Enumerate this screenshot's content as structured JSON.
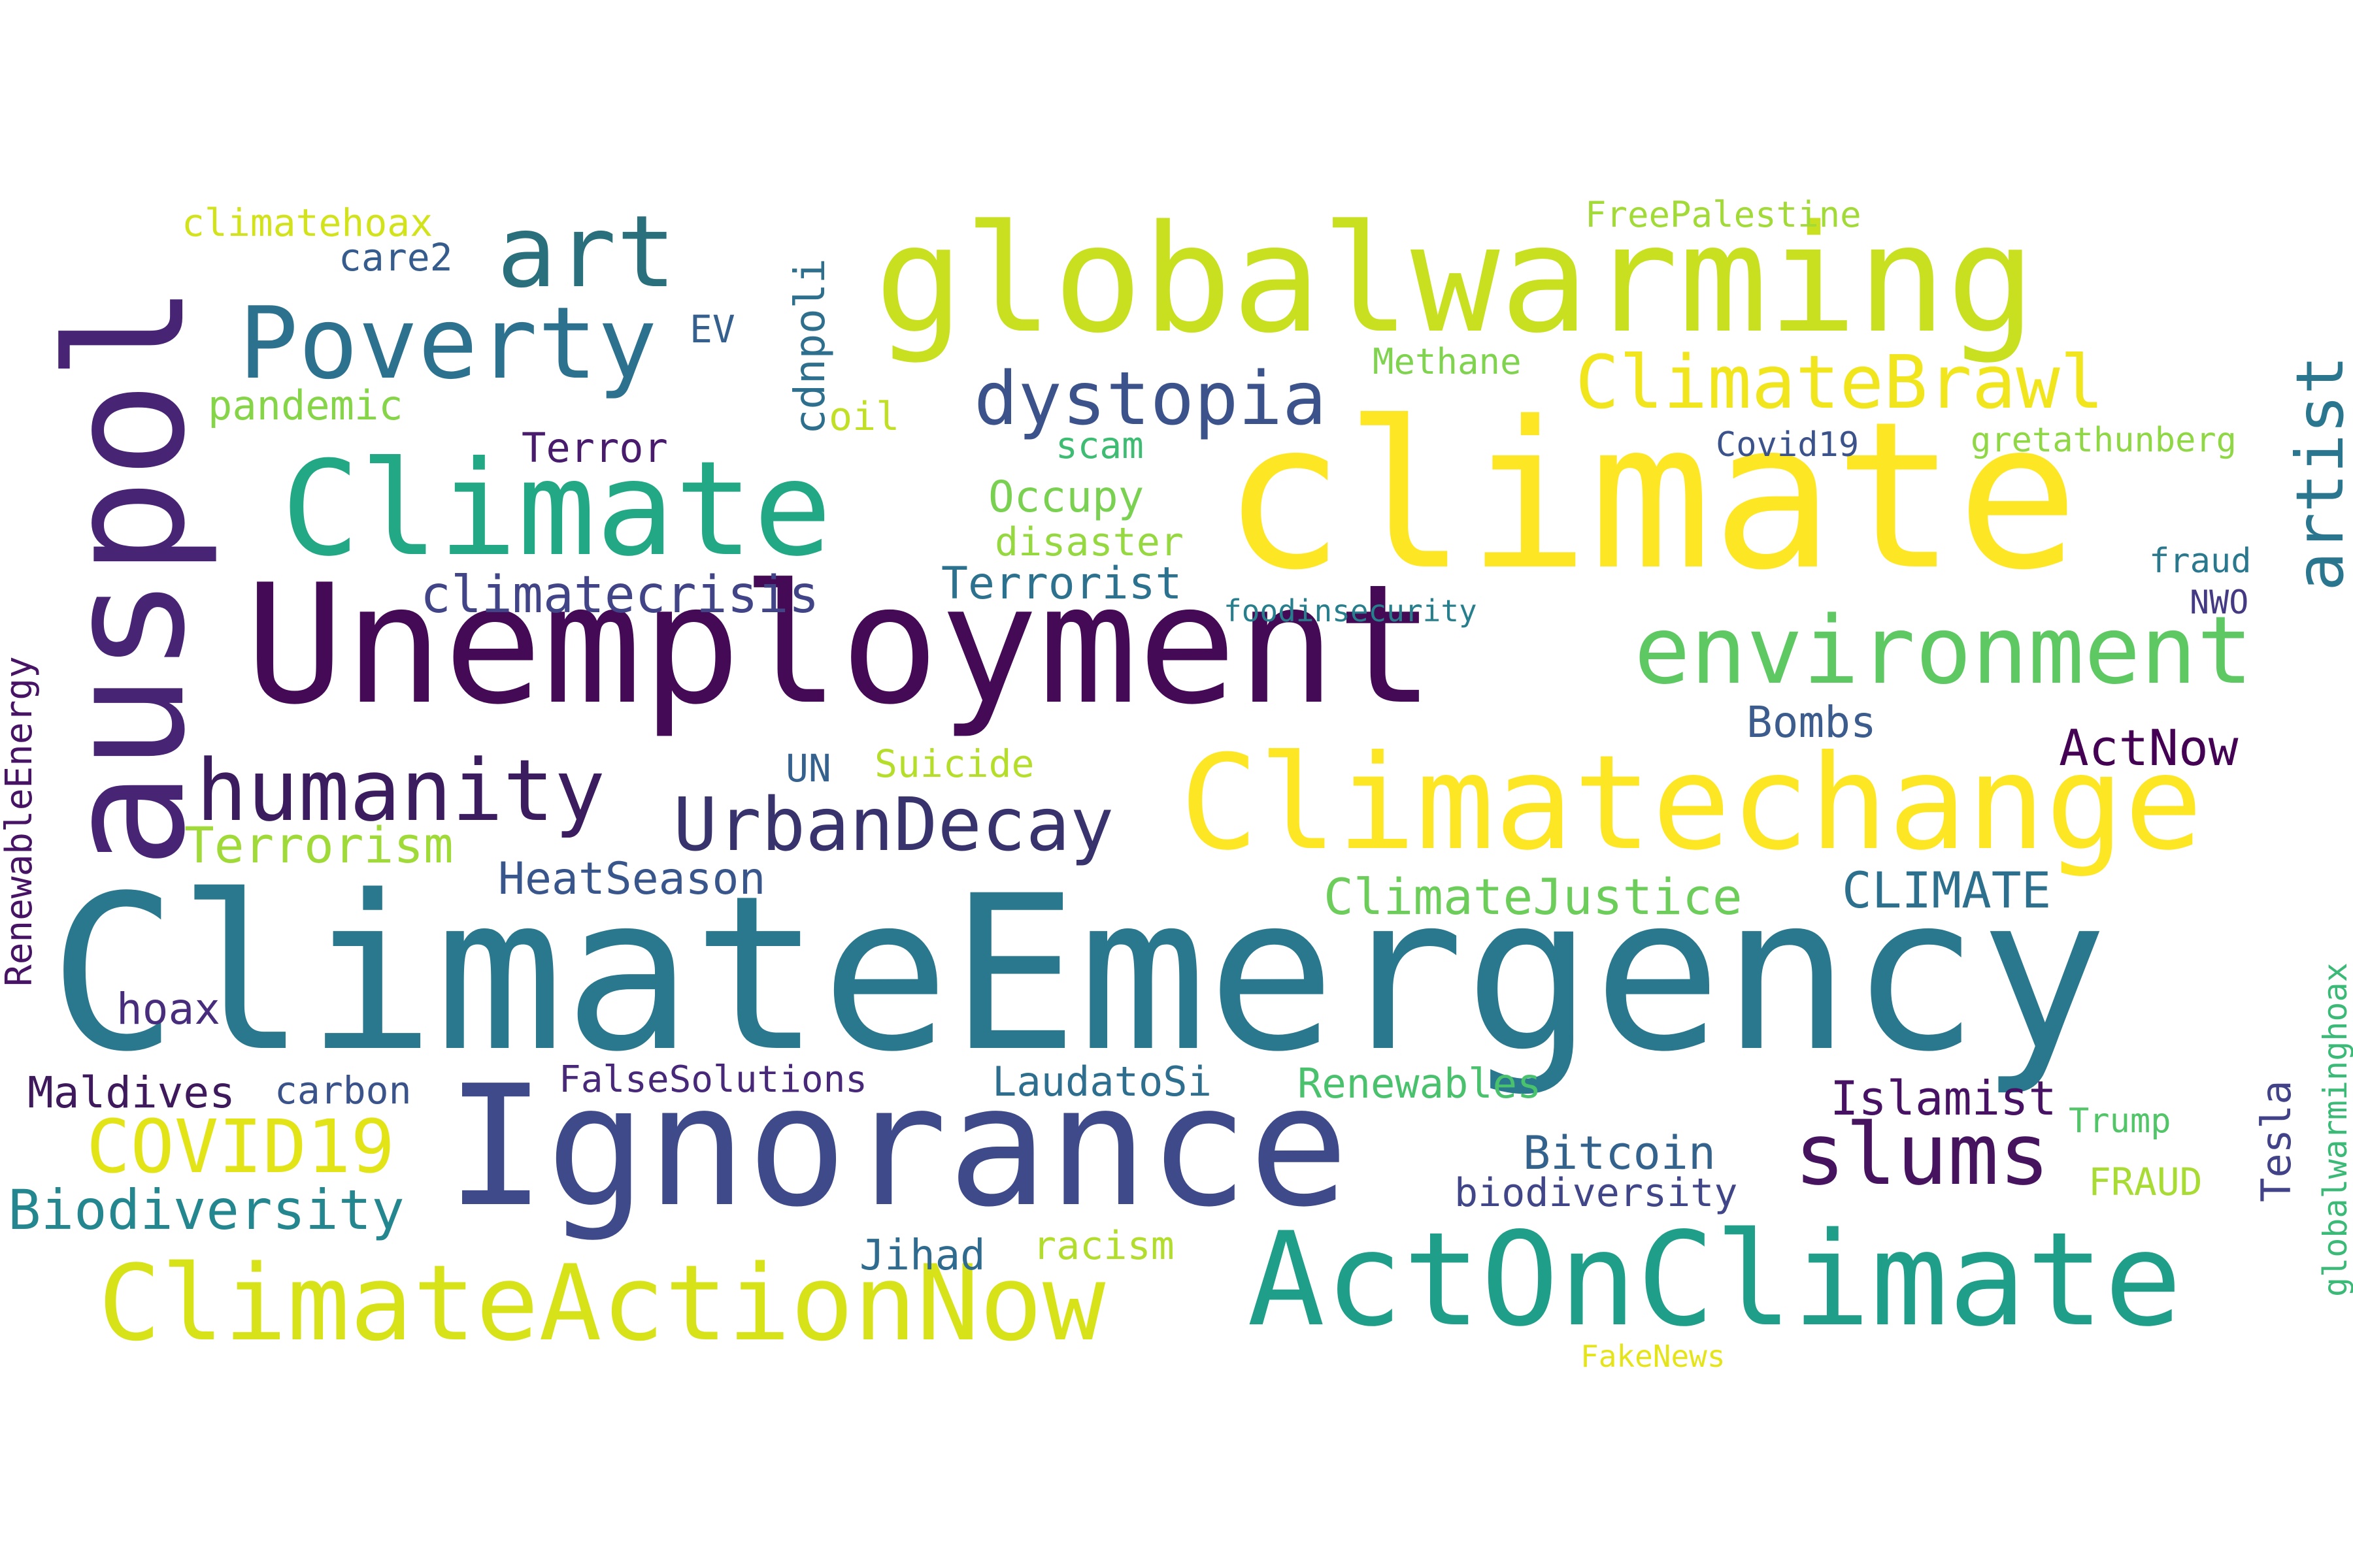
{
  "words": [
    {
      "text": "ClimateEmergency",
      "color": "#2a788e"
    },
    {
      "text": "Unemployment",
      "color": "#440a55"
    },
    {
      "text": "climate",
      "color": "#fde725"
    },
    {
      "text": "Ignorance",
      "color": "#3e4a89"
    },
    {
      "text": "globalwarming",
      "color": "#c8e020"
    },
    {
      "text": "Climatechange",
      "color": "#fde725"
    },
    {
      "text": "auspol",
      "color": "#482475"
    },
    {
      "text": "ActOnClimate",
      "color": "#1f9e89"
    },
    {
      "text": "Climate",
      "color": "#22a884"
    },
    {
      "text": "ClimateActionNow",
      "color": "#d8e219"
    },
    {
      "text": "environment",
      "color": "#5ec962"
    },
    {
      "text": "humanity",
      "color": "#3b1c5f"
    },
    {
      "text": "UrbanDecay",
      "color": "#38336d"
    },
    {
      "text": "Poverty",
      "color": "#2c728e"
    },
    {
      "text": "art",
      "color": "#2a6f7c"
    },
    {
      "text": "slums",
      "color": "#46145e"
    },
    {
      "text": "dystopia",
      "color": "#3b528b"
    },
    {
      "text": "ClimateBrawl",
      "color": "#f1e51d"
    },
    {
      "text": "COVID19",
      "color": "#e3e418"
    },
    {
      "text": "artist",
      "color": "#2a768e"
    },
    {
      "text": "Biodiversity",
      "color": "#24868e"
    },
    {
      "text": "climatecrisis",
      "color": "#414487"
    },
    {
      "text": "ClimateJustice",
      "color": "#6ccd5a"
    },
    {
      "text": "Terrorism",
      "color": "#a0da39"
    },
    {
      "text": "HeatSeason",
      "color": "#39568c"
    },
    {
      "text": "CLIMATE",
      "color": "#2d708e"
    },
    {
      "text": "ActNow",
      "color": "#440154"
    },
    {
      "text": "Islamist",
      "color": "#471164"
    },
    {
      "text": "Bitcoin",
      "color": "#33638d"
    },
    {
      "text": "LaudatoSi",
      "color": "#2e6e8e"
    },
    {
      "text": "Renewables",
      "color": "#4ac16d"
    },
    {
      "text": "Maldives",
      "color": "#3e1a5c"
    },
    {
      "text": "hoax",
      "color": "#472d7b"
    },
    {
      "text": "Terrorist",
      "color": "#2c728e"
    },
    {
      "text": "Bombs",
      "color": "#3b5c8c"
    },
    {
      "text": "biodiversity",
      "color": "#404688"
    },
    {
      "text": "FalseSolutions",
      "color": "#482878"
    },
    {
      "text": "Jihad",
      "color": "#2f6b8e"
    },
    {
      "text": "racism",
      "color": "#b2dd2d"
    },
    {
      "text": "carbon",
      "color": "#3a538b"
    },
    {
      "text": "Suicide",
      "color": "#b5de2b"
    },
    {
      "text": "UN",
      "color": "#34618d"
    },
    {
      "text": "Occupy",
      "color": "#7ad151"
    },
    {
      "text": "disaster",
      "color": "#95d840"
    },
    {
      "text": "Terror",
      "color": "#481b6d"
    },
    {
      "text": "pandemic",
      "color": "#86d549"
    },
    {
      "text": "climatehoax",
      "color": "#d2e21b"
    },
    {
      "text": "care2",
      "color": "#365c8d"
    },
    {
      "text": "EV",
      "color": "#355f8d"
    },
    {
      "text": "oil",
      "color": "#c0df25"
    },
    {
      "text": "scam",
      "color": "#3fbc73"
    },
    {
      "text": "Methane",
      "color": "#7fd34e"
    },
    {
      "text": "FreePalestine",
      "color": "#a2da37"
    },
    {
      "text": "gretathunberg",
      "color": "#8fd744"
    },
    {
      "text": "Covid19",
      "color": "#3b528b"
    },
    {
      "text": "foodinsecurity",
      "color": "#277f8e"
    },
    {
      "text": "fraud",
      "color": "#2a788e"
    },
    {
      "text": "NWO",
      "color": "#443983"
    },
    {
      "text": "Trump",
      "color": "#52c569"
    },
    {
      "text": "FRAUD",
      "color": "#a8db34"
    },
    {
      "text": "FakeNews",
      "color": "#e5e419"
    },
    {
      "text": "cdnpoli",
      "color": "#2e6f8e"
    },
    {
      "text": "RenewableEnergy",
      "color": "#471365"
    },
    {
      "text": "Tesla",
      "color": "#414287"
    },
    {
      "text": "globalwarminghoax",
      "color": "#3aba76"
    }
  ]
}
